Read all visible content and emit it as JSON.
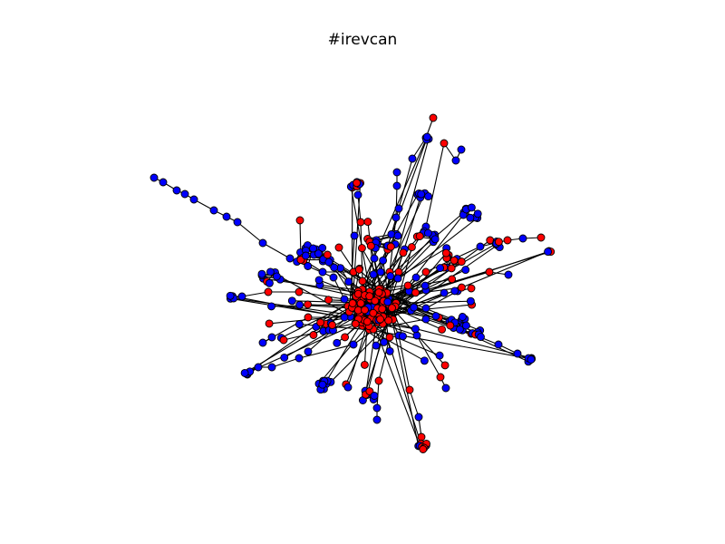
{
  "title": "#irevcan",
  "colors": {
    "background": "#ffffff",
    "node_blue": "#0000ff",
    "node_red": "#ff0000",
    "edge": "#000000",
    "node_outline": "#000000"
  },
  "graph": {
    "type": "network",
    "node_color_classes": [
      "blue",
      "red"
    ]
  }
}
